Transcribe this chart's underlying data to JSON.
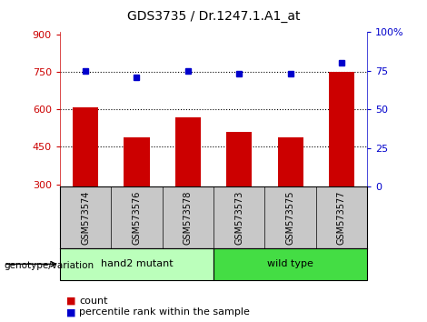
{
  "title": "GDS3735 / Dr.1247.1.A1_at",
  "samples": [
    "GSM573574",
    "GSM573576",
    "GSM573578",
    "GSM573573",
    "GSM573575",
    "GSM573577"
  ],
  "counts": [
    610,
    490,
    570,
    510,
    490,
    750
  ],
  "percentiles": [
    75,
    71,
    75,
    73,
    73,
    80
  ],
  "ylim_left": [
    290,
    910
  ],
  "yticks_left": [
    300,
    450,
    600,
    750,
    900
  ],
  "ylim_right": [
    0,
    100
  ],
  "yticks_right": [
    0,
    25,
    50,
    75,
    100
  ],
  "ytick_labels_right": [
    "0",
    "25",
    "50",
    "75",
    "100%"
  ],
  "bar_color": "#cc0000",
  "dot_color": "#0000cc",
  "grid_lines": [
    450,
    600,
    750
  ],
  "group_label": "genotype/variation",
  "legend_count_label": "count",
  "legend_percentile_label": "percentile rank within the sample",
  "background_color": "#ffffff",
  "plot_bg_color": "#ffffff",
  "tick_label_area_color": "#c8c8c8",
  "group1_label": "hand2 mutant",
  "group1_color": "#bbffbb",
  "group2_label": "wild type",
  "group2_color": "#44dd44",
  "bar_width": 0.5,
  "xlim": [
    -0.5,
    5.5
  ]
}
